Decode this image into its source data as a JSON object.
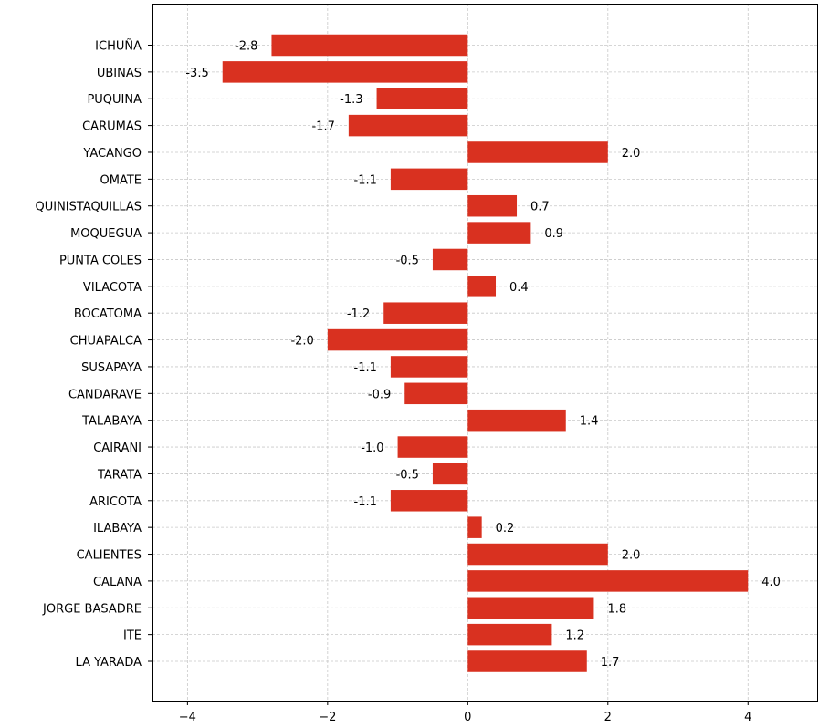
{
  "chart_data": {
    "type": "bar",
    "orientation": "horizontal",
    "title": "",
    "xlabel": "",
    "ylabel": "",
    "categories": [
      "ICHUÑA",
      "UBINAS",
      "PUQUINA",
      "CARUMAS",
      "YACANGO",
      "OMATE",
      "QUINISTAQUILLAS",
      "MOQUEGUA",
      "PUNTA COLES",
      "VILACOTA",
      "BOCATOMA",
      "CHUAPALCA",
      "SUSAPAYA",
      "CANDARAVE",
      "TALABAYA",
      "CAIRANI",
      "TARATA",
      "ARICOTA",
      "ILABAYA",
      "CALIENTES",
      "CALANA",
      "JORGE BASADRE",
      "ITE",
      "LA YARADA"
    ],
    "values": [
      -2.8,
      -3.5,
      -1.3,
      -1.7,
      2.0,
      -1.1,
      0.7,
      0.9,
      -0.5,
      0.4,
      -1.2,
      -2.0,
      -1.1,
      -0.9,
      1.4,
      -1.0,
      -0.5,
      -1.1,
      0.2,
      2.0,
      4.0,
      1.8,
      1.2,
      1.7
    ],
    "data_labels": [
      "-2.8",
      "-3.5",
      "-1.3",
      "-1.7",
      "2.0",
      "-1.1",
      "0.7",
      "0.9",
      "-0.5",
      "0.4",
      "-1.2",
      "-2.0",
      "-1.1",
      "-0.9",
      "1.4",
      "-1.0",
      "-0.5",
      "-1.1",
      "0.2",
      "2.0",
      "4.0",
      "1.8",
      "1.2",
      "1.7"
    ],
    "xlim": [
      -4.5,
      5.0
    ],
    "xticks": [
      -4,
      -2,
      0,
      2,
      4
    ],
    "xtick_labels": [
      "−4",
      "−2",
      "0",
      "2",
      "4"
    ],
    "grid": true,
    "legend": "none",
    "bar_color": "#d93120"
  }
}
